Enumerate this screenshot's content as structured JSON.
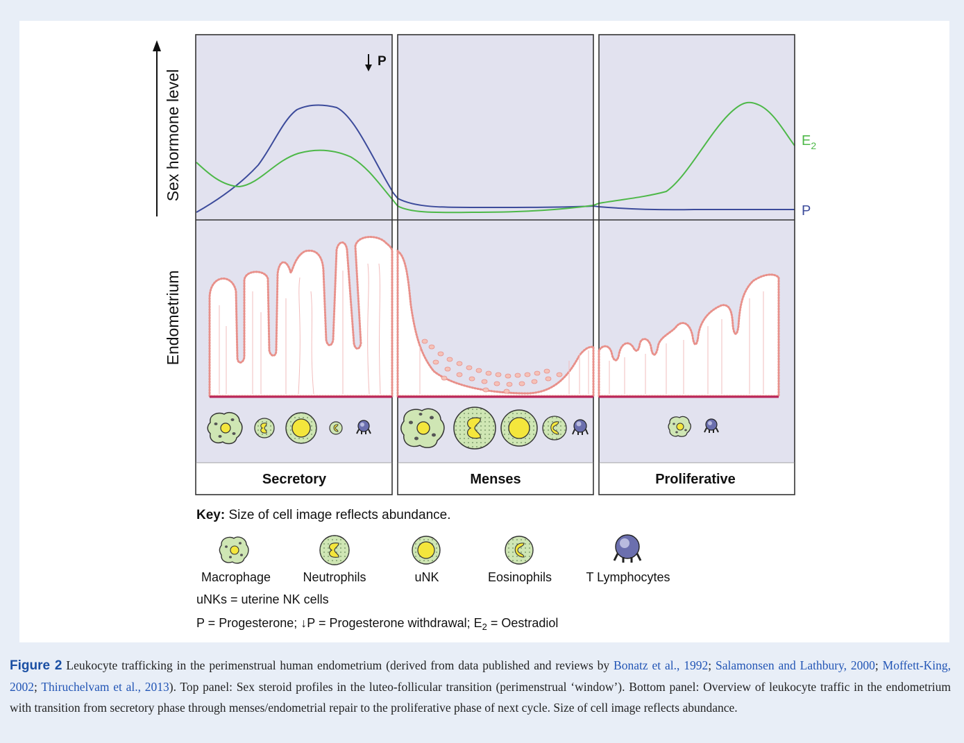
{
  "figure": {
    "axis_hormone_label": "Sex hormone level",
    "axis_endometrium_label": "Endometrium",
    "p_withdrawal_marker": "P",
    "curve_labels": {
      "e2_main": "E",
      "e2_sub": "2",
      "p": "P"
    },
    "phases": [
      "Secretory",
      "Menses",
      "Proliferative"
    ],
    "key": {
      "title": "Key:",
      "text": " Size of cell image reflects abundance.",
      "cells": [
        "Macrophage",
        "Neutrophils",
        "uNK",
        "Eosinophils",
        "T Lymphocytes"
      ],
      "note_unk": "uNKs = uterine NK cells",
      "note_abbrev_1": "P = Progesterone;  ",
      "note_abbrev_2": "P = Progesterone withdrawal; E",
      "note_abbrev_sub": "2",
      "note_abbrev_3": " = Oestradiol"
    },
    "colors": {
      "panel_bg": "#e2e2ef",
      "progesterone": "#3c4b9b",
      "oestradiol": "#4db848",
      "endometrium_outline": "#e8908a",
      "basal_line": "#b8245a",
      "cell_green": "#cfe6b4",
      "cell_nucleus": "#f4e63c",
      "t_lymph": "#6b6fae"
    }
  },
  "caption": {
    "label": "Figure 2",
    "part1": "Leukocyte trafficking in the perimenstrual human endometrium (derived from data published and reviews by ",
    "ref1": "Bonatz et al., 1992",
    "sep1": "; ",
    "ref2": "Salamonsen and Lathbury, 2000",
    "sep2": "; ",
    "ref3": "Moffett-King, 2002",
    "sep3": "; ",
    "ref4": "Thiruchelvam et al., 2013",
    "part2": "). Top panel: Sex steroid profiles in the luteo-follicular transition (perimenstrual ‘window’). Bottom panel: Overview of leukocyte traffic in the endometrium with transition from secretory phase through menses/endometrial repair to the proliferative phase of next cycle. Size of cell image reflects abundance."
  }
}
